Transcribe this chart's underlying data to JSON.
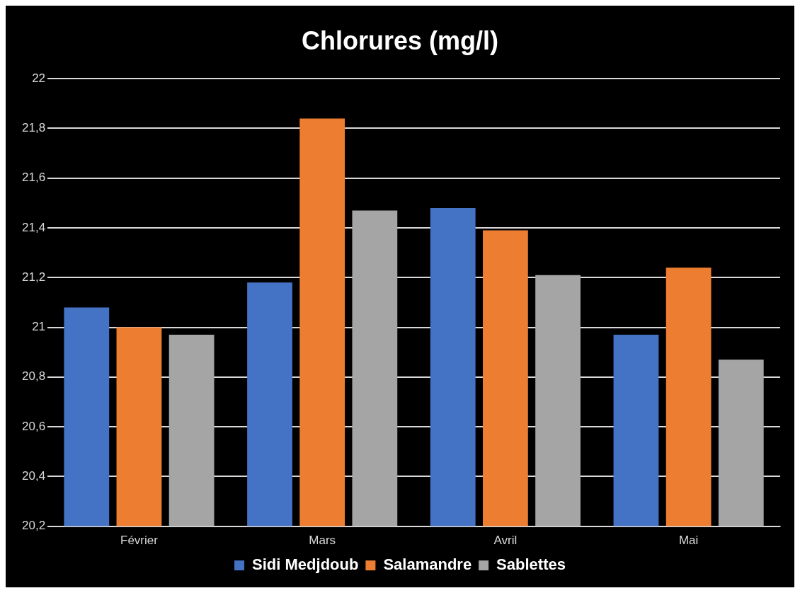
{
  "chart_data": {
    "type": "bar",
    "title": "Chlorures (mg/l)",
    "categories": [
      "Février",
      "Mars",
      "Avril",
      "Mai"
    ],
    "series": [
      {
        "name": "Sidi Medjdoub",
        "color": "#4472c4",
        "values": [
          21.08,
          21.18,
          21.48,
          20.97
        ]
      },
      {
        "name": "Salamandre",
        "color": "#ed7d31",
        "values": [
          21.0,
          21.84,
          21.39,
          21.24
        ]
      },
      {
        "name": "Sablettes",
        "color": "#a5a5a5",
        "values": [
          20.97,
          21.47,
          21.21,
          20.87
        ]
      }
    ],
    "ylim": [
      20.2,
      22
    ],
    "yticks": [
      {
        "value": 20.2,
        "label": "20,2"
      },
      {
        "value": 20.4,
        "label": "20,4"
      },
      {
        "value": 20.6,
        "label": "20,6"
      },
      {
        "value": 20.8,
        "label": "20,8"
      },
      {
        "value": 21,
        "label": "21"
      },
      {
        "value": 21.2,
        "label": "21,2"
      },
      {
        "value": 21.4,
        "label": "21,4"
      },
      {
        "value": 21.6,
        "label": "21,6"
      },
      {
        "value": 21.8,
        "label": "21,8"
      },
      {
        "value": 22,
        "label": "22"
      }
    ],
    "grid": "y",
    "legend": "bottom"
  }
}
